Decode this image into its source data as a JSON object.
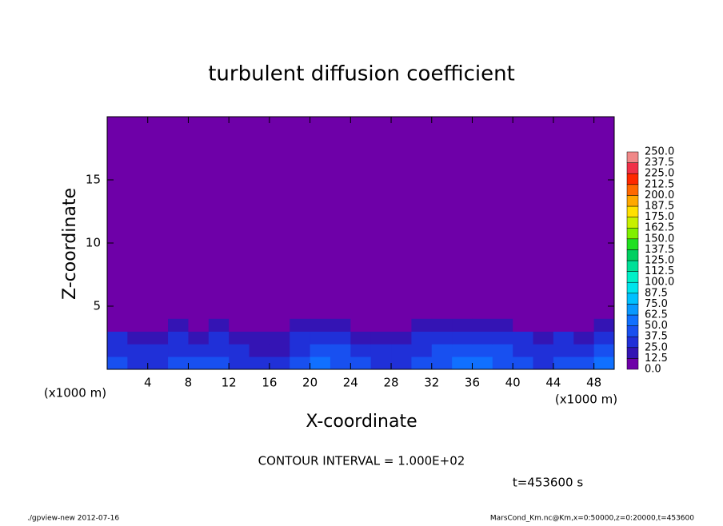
{
  "chart_data": {
    "type": "contour",
    "title": "turbulent diffusion coefficient",
    "x_label": "X-coordinate",
    "y_label": "Z-coordinate",
    "x_unit_label": "(x1000 m)",
    "x_unit_label_right": "(x1000 m)",
    "contour_interval": "CONTOUR INTERVAL = 1.000E+02",
    "time_label": "t=453600 s",
    "footer_left": "./gpview-new  2012-07-16",
    "footer_right": "MarsCond_Km.nc@Km,x=0:50000,z=0:20000,t=453600",
    "xlim": [
      0,
      50
    ],
    "ylim": [
      0,
      20
    ],
    "xticks": [
      4,
      8,
      12,
      16,
      20,
      24,
      28,
      32,
      36,
      40,
      44,
      48
    ],
    "yticks": [
      5,
      10,
      15
    ],
    "x": [
      1,
      3,
      5,
      7,
      9,
      11,
      13,
      15,
      17,
      19,
      21,
      23,
      25,
      27,
      29,
      31,
      33,
      35,
      37,
      39,
      41,
      43,
      45,
      47,
      49
    ],
    "y": [
      0.5,
      1.5,
      2.5,
      3.5
    ],
    "z": [
      [
        45,
        35,
        30,
        40,
        38,
        42,
        35,
        30,
        28,
        40,
        50,
        45,
        38,
        32,
        35,
        40,
        45,
        50,
        55,
        48,
        40,
        35,
        42,
        38,
        50
      ],
      [
        35,
        30,
        25,
        32,
        30,
        35,
        28,
        22,
        20,
        35,
        40,
        38,
        30,
        25,
        28,
        35,
        38,
        42,
        45,
        40,
        32,
        28,
        35,
        30,
        40
      ],
      [
        25,
        22,
        18,
        25,
        22,
        28,
        20,
        15,
        14,
        28,
        30,
        30,
        22,
        18,
        22,
        28,
        30,
        32,
        35,
        30,
        25,
        20,
        25,
        22,
        30
      ],
      [
        12,
        10,
        8,
        14,
        12,
        15,
        10,
        6,
        5,
        15,
        18,
        20,
        12,
        8,
        10,
        14,
        18,
        15,
        20,
        16,
        12,
        10,
        12,
        10,
        15
      ]
    ],
    "levels": [
      {
        "value": 0,
        "label": "0.0"
      },
      {
        "value": 12.5,
        "label": "12.5"
      },
      {
        "value": 25,
        "label": "25.0"
      },
      {
        "value": 37.5,
        "label": "37.5"
      },
      {
        "value": 50,
        "label": "50.0"
      },
      {
        "value": 62.5,
        "label": "62.5"
      },
      {
        "value": 75,
        "label": "75.0"
      },
      {
        "value": 87.5,
        "label": "87.5"
      },
      {
        "value": 100,
        "label": "100.0"
      },
      {
        "value": 112.5,
        "label": "112.5"
      },
      {
        "value": 125,
        "label": "125.0"
      },
      {
        "value": 137.5,
        "label": "137.5"
      },
      {
        "value": 150,
        "label": "150.0"
      },
      {
        "value": 162.5,
        "label": "162.5"
      },
      {
        "value": 175,
        "label": "175.0"
      },
      {
        "value": 187.5,
        "label": "187.5"
      },
      {
        "value": 200,
        "label": "200.0"
      },
      {
        "value": 212.5,
        "label": "212.5"
      },
      {
        "value": 225,
        "label": "225.0"
      },
      {
        "value": 237.5,
        "label": "237.5"
      },
      {
        "value": 250,
        "label": "250.0"
      }
    ],
    "colors": [
      "#6e00a8",
      "#3414b4",
      "#2030d8",
      "#1850f0",
      "#1070ff",
      "#0898ff",
      "#00c0ff",
      "#00e4ec",
      "#00f0c8",
      "#00e098",
      "#00d060",
      "#20e020",
      "#80f000",
      "#c8f000",
      "#ffe000",
      "#ffa800",
      "#ff6800",
      "#ff2800",
      "#f03048",
      "#f08888"
    ]
  }
}
